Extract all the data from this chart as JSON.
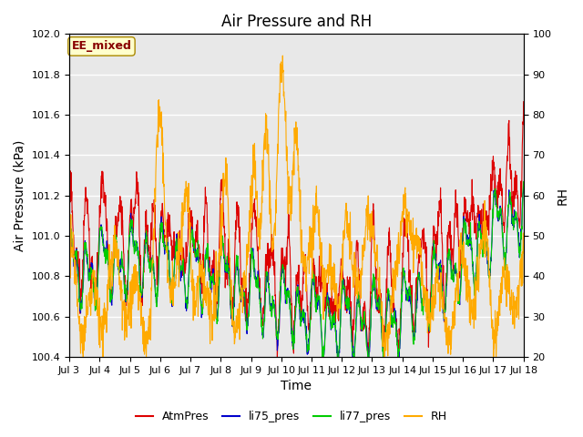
{
  "title": "Air Pressure and RH",
  "xlabel": "Time",
  "ylabel_left": "Air Pressure (kPa)",
  "ylabel_right": "RH",
  "ylim_left": [
    100.4,
    102.0
  ],
  "ylim_right": [
    20,
    100
  ],
  "yticks_left": [
    100.4,
    100.6,
    100.8,
    101.0,
    101.2,
    101.4,
    101.6,
    101.8,
    102.0
  ],
  "yticks_right": [
    20,
    30,
    40,
    50,
    60,
    70,
    80,
    90,
    100
  ],
  "xtick_labels": [
    "Jul 3",
    "Jul 4",
    "Jul 5",
    "Jul 6",
    "Jul 7",
    "Jul 8",
    "Jul 9",
    "Jul 10",
    "Jul 11",
    "Jul 12",
    "Jul 13",
    "Jul 14",
    "Jul 15",
    "Jul 16",
    "Jul 17",
    "Jul 18"
  ],
  "colors": {
    "AtmPres": "#dd0000",
    "li75_pres": "#0000cc",
    "li77_pres": "#00cc00",
    "RH": "#ffaa00"
  },
  "watermark_text": "EE_mixed",
  "watermark_color": "#880000",
  "watermark_bg": "#ffffcc",
  "background_color": "#e8e8e8",
  "grid_color": "white",
  "title_fontsize": 12,
  "axis_fontsize": 10,
  "tick_fontsize": 8,
  "legend_fontsize": 9,
  "seed": 7,
  "n_points": 1440
}
